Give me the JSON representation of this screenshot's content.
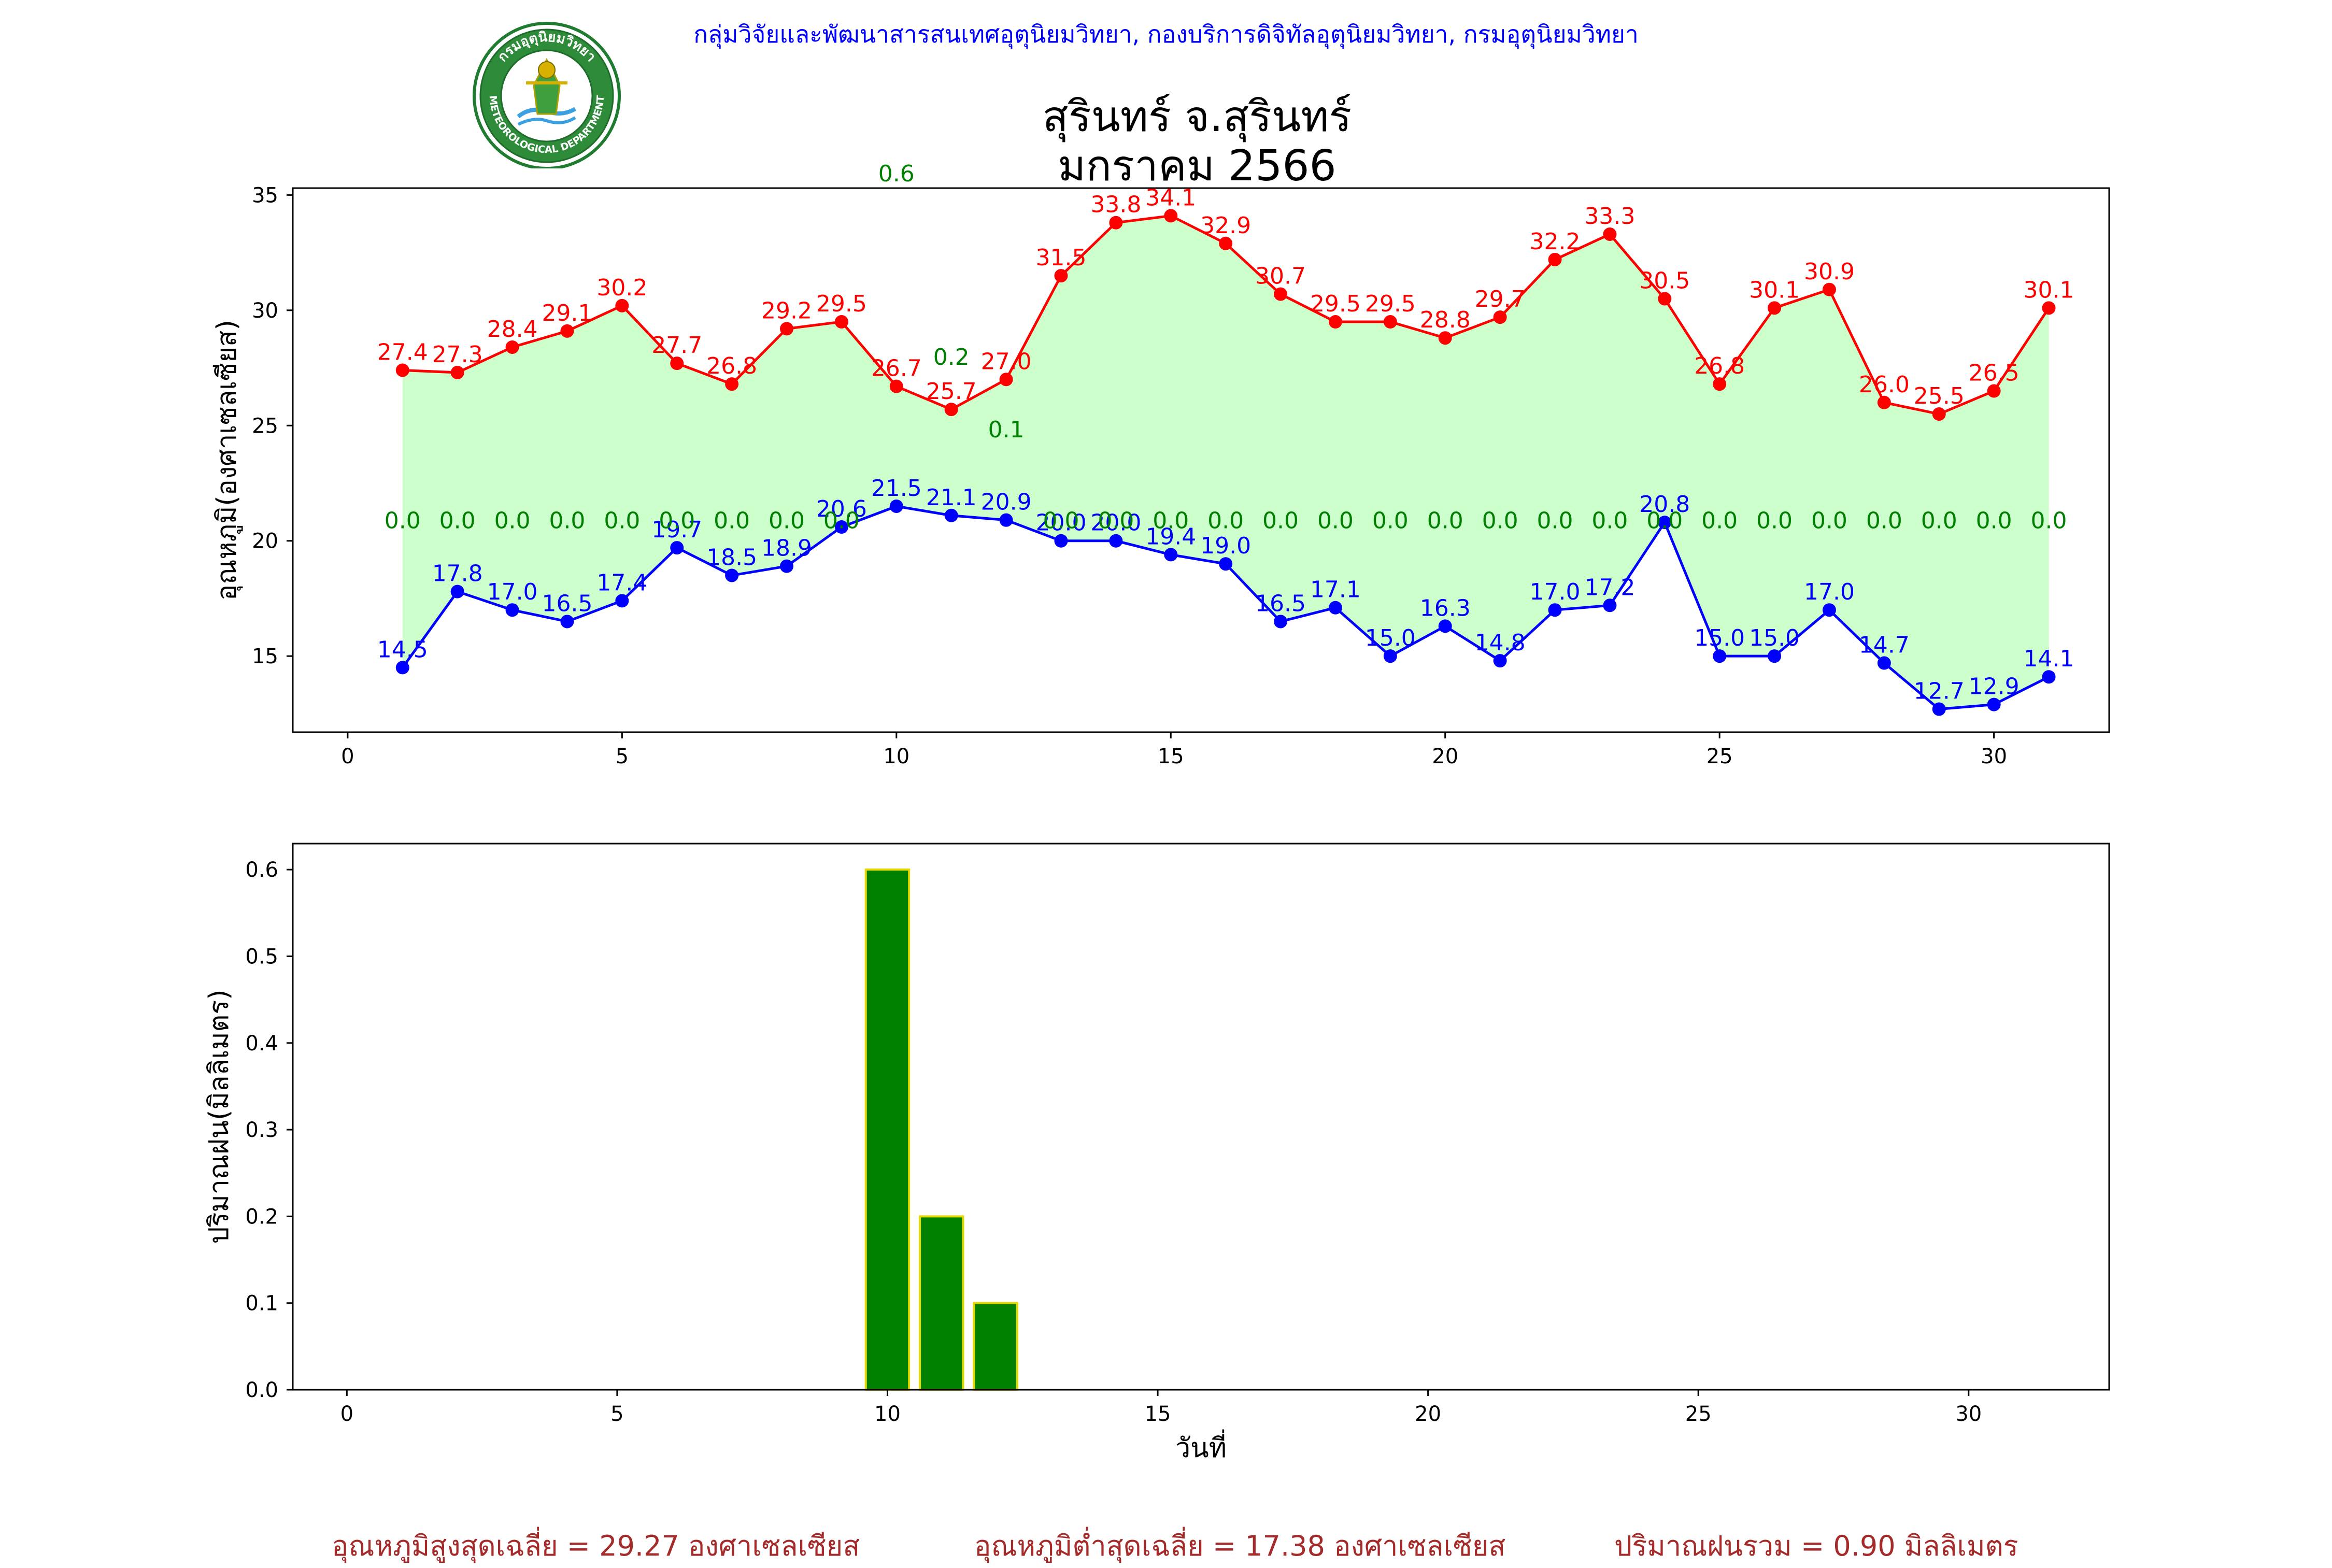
{
  "header": {
    "department": "กลุ่มวิจัยและพัฒนาสารสนเทศอุตุนิยมวิทยา, กองบริการดิจิทัลอุตุนิยมวิทยา, กรมอุตุนิยมวิทยา",
    "station": "สุรินทร์ จ.สุรินทร์",
    "period": "มกราคม 2566",
    "logo_top_text": "กรมอุตุนิยมวิทยา",
    "logo_bottom_text": "METEOROLOGICAL DEPARTMENT"
  },
  "colors": {
    "max": "#ff0000",
    "min": "#0000ff",
    "rain_label": "#008000",
    "fill": "#ccffcc",
    "bar": "#008000",
    "bar_edge": "#e6d800",
    "summary": "#a52a2a"
  },
  "chart_data": [
    {
      "type": "line",
      "xlabel": "",
      "ylabel": "อุณหภูมิ(องศาเซลเซียส)",
      "xlim": [
        -1,
        32.1
      ],
      "ylim": [
        11.7,
        35.3
      ],
      "xticks": [
        0,
        5,
        10,
        15,
        20,
        25,
        30
      ],
      "yticks": [
        15,
        20,
        25,
        30,
        35
      ],
      "x": [
        1,
        2,
        3,
        4,
        5,
        6,
        7,
        8,
        9,
        10,
        11,
        12,
        13,
        14,
        15,
        16,
        17,
        18,
        19,
        20,
        21,
        22,
        23,
        24,
        25,
        26,
        27,
        28,
        29,
        30,
        31
      ],
      "series": [
        {
          "values": [
            27.4,
            27.3,
            28.4,
            29.1,
            30.2,
            27.7,
            26.8,
            29.2,
            29.5,
            26.7,
            25.7,
            27.0,
            31.5,
            33.8,
            34.1,
            32.9,
            30.7,
            29.5,
            29.5,
            28.8,
            29.7,
            32.2,
            33.3,
            30.5,
            26.8,
            30.1,
            30.9,
            26.0,
            25.5,
            26.5,
            30.1
          ]
        },
        {
          "values": [
            14.5,
            17.8,
            17.0,
            16.5,
            17.4,
            19.7,
            18.5,
            18.9,
            20.6,
            21.5,
            21.1,
            20.9,
            20.0,
            20.0,
            19.4,
            19.0,
            16.5,
            17.1,
            15.0,
            16.3,
            14.8,
            17.0,
            17.2,
            20.8,
            15.0,
            15.0,
            17.0,
            14.7,
            12.7,
            12.9,
            14.1
          ]
        }
      ],
      "rain_labels": [
        "0.0",
        "0.0",
        "0.0",
        "0.0",
        "0.0",
        "0.0",
        "0.0",
        "0.0",
        "0.0",
        "0.6",
        "0.2",
        "0.1",
        "0.0",
        "0.0",
        "0.0",
        "0.0",
        "0.0",
        "0.0",
        "0.0",
        "0.0",
        "0.0",
        "0.0",
        "0.0",
        "0.0",
        "0.0",
        "0.0",
        "0.0",
        "0.0",
        "0.0",
        "0.0",
        "0.0"
      ],
      "grid": false,
      "fill_between": true
    },
    {
      "type": "bar",
      "xlabel": "วันที่",
      "ylabel": "ปริมาณฝน(มิลลิเมตร)",
      "xlim": [
        -1,
        32.6
      ],
      "ylim": [
        0,
        0.63
      ],
      "xticks": [
        0,
        5,
        10,
        15,
        20,
        25,
        30
      ],
      "yticks": [
        0.0,
        0.1,
        0.2,
        0.3,
        0.4,
        0.5,
        0.6
      ],
      "categories": [
        1,
        2,
        3,
        4,
        5,
        6,
        7,
        8,
        9,
        10,
        11,
        12,
        13,
        14,
        15,
        16,
        17,
        18,
        19,
        20,
        21,
        22,
        23,
        24,
        25,
        26,
        27,
        28,
        29,
        30,
        31
      ],
      "values": [
        0,
        0,
        0,
        0,
        0,
        0,
        0,
        0,
        0,
        0.6,
        0.2,
        0.1,
        0,
        0,
        0,
        0,
        0,
        0,
        0,
        0,
        0,
        0,
        0,
        0,
        0,
        0,
        0,
        0,
        0,
        0,
        0
      ],
      "grid": false
    }
  ],
  "summary": {
    "max_text": "อุณหภูมิสูงสุดเฉลี่ย = 29.27 องศาเซลเซียส",
    "min_text": "อุณหภูมิต่ำสุดเฉลี่ย = 17.38 องศาเซลเซียส",
    "rain_text": "ปริมาณฝนรวม = 0.90 มิลลิเมตร"
  }
}
